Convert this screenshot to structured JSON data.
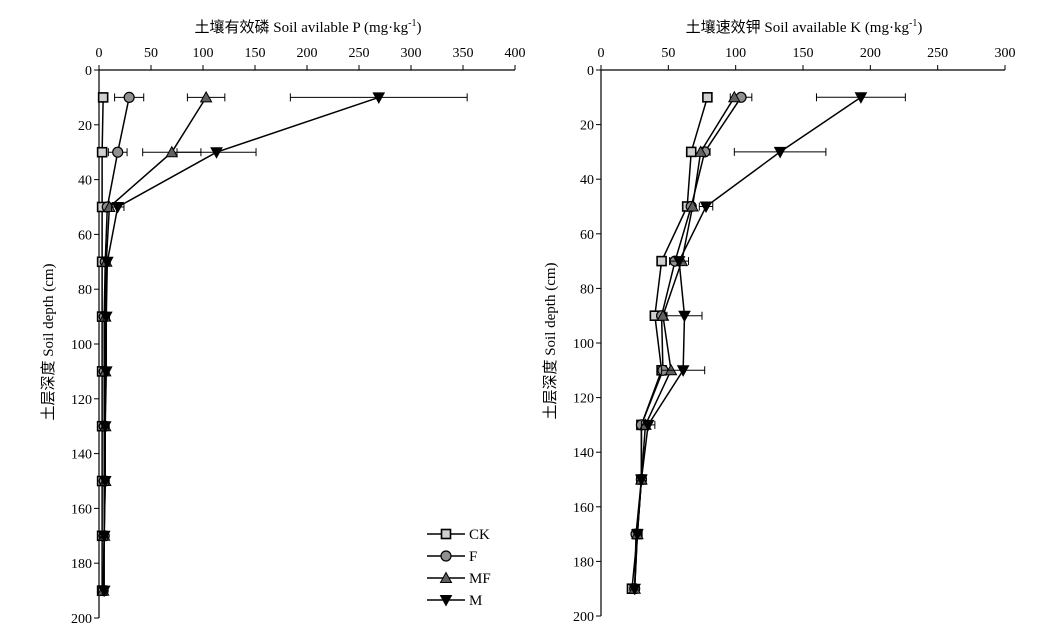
{
  "chart_data": [
    {
      "type": "line",
      "title": "",
      "xlabel": "土壤有效磷 Soil avilable P (mg·kg-1)",
      "xlabel_main": "土壤有效磷 Soil avilable P (mg·kg",
      "xlabel_sup": "-1",
      "xlabel_end": ")",
      "ylabel": "土层深度 Soil depth (cm)",
      "x_axis_position": "top",
      "y_axis_inverted": true,
      "xlim": [
        0,
        400
      ],
      "ylim": [
        0,
        200
      ],
      "x_ticks": [
        0,
        50,
        100,
        150,
        200,
        250,
        300,
        350,
        400
      ],
      "y_ticks": [
        0,
        20,
        40,
        60,
        80,
        100,
        120,
        140,
        160,
        180,
        200
      ],
      "grid": false,
      "legend": "bottom-right",
      "depths": [
        10,
        30,
        50,
        70,
        90,
        110,
        130,
        150,
        170,
        190
      ],
      "series": [
        {
          "name": "CK",
          "marker": "square",
          "values": [
            4,
            3,
            3,
            3,
            3,
            3,
            3,
            3,
            3,
            3
          ],
          "errors": [
            0,
            0,
            0,
            0,
            0,
            0,
            0,
            0,
            0,
            0
          ]
        },
        {
          "name": "F",
          "marker": "circle",
          "values": [
            29,
            18,
            8,
            6,
            5,
            5,
            5,
            5,
            5,
            4
          ],
          "errors": [
            14,
            9,
            0,
            0,
            0,
            0,
            0,
            0,
            0,
            0
          ]
        },
        {
          "name": "MF",
          "marker": "triangle-up",
          "values": [
            103,
            70,
            10,
            7,
            6,
            6,
            6,
            6,
            5,
            4
          ],
          "errors": [
            18,
            28,
            0,
            0,
            0,
            0,
            0,
            0,
            0,
            0
          ]
        },
        {
          "name": "M",
          "marker": "triangle-down",
          "values": [
            269,
            113,
            18,
            8,
            7,
            7,
            6,
            6,
            5,
            5
          ],
          "errors": [
            85,
            38,
            6,
            2,
            3,
            2,
            3,
            3,
            3,
            2
          ]
        }
      ]
    },
    {
      "type": "line",
      "title": "",
      "xlabel": "土壤速效钾 Soil available K (mg·kg-1)",
      "xlabel_main": "土壤速效钾 Soil available K (mg·kg",
      "xlabel_sup": "-1",
      "xlabel_end": ")",
      "ylabel": "土层深度 Soil depth (cm)",
      "x_axis_position": "top",
      "y_axis_inverted": true,
      "xlim": [
        0,
        300
      ],
      "ylim": [
        0,
        200
      ],
      "x_ticks": [
        0,
        50,
        100,
        150,
        200,
        250,
        300
      ],
      "y_ticks": [
        0,
        20,
        40,
        60,
        80,
        100,
        120,
        140,
        160,
        180,
        200
      ],
      "grid": false,
      "depths": [
        10,
        30,
        50,
        70,
        90,
        110,
        130,
        150,
        170,
        190
      ],
      "series": [
        {
          "name": "CK",
          "marker": "square",
          "values": [
            79,
            67,
            64,
            45,
            40,
            45,
            30,
            30,
            27,
            23
          ],
          "errors": [
            0,
            0,
            0,
            0,
            0,
            0,
            0,
            0,
            0,
            0
          ]
        },
        {
          "name": "F",
          "marker": "circle",
          "values": [
            104,
            77,
            67,
            55,
            45,
            46,
            30,
            30,
            26,
            25
          ],
          "errors": [
            8,
            4,
            2,
            4,
            0,
            0,
            0,
            0,
            0,
            0
          ]
        },
        {
          "name": "MF",
          "marker": "triangle-up",
          "values": [
            99,
            74,
            68,
            60,
            46,
            52,
            33,
            30,
            27,
            25
          ],
          "errors": [
            0,
            0,
            0,
            0,
            0,
            0,
            0,
            0,
            0,
            0
          ]
        },
        {
          "name": "M",
          "marker": "triangle-down",
          "values": [
            193,
            133,
            78,
            58,
            62,
            61,
            35,
            30,
            27,
            25
          ],
          "errors": [
            33,
            34,
            5,
            7,
            13,
            16,
            5,
            0,
            0,
            0
          ]
        }
      ]
    }
  ]
}
